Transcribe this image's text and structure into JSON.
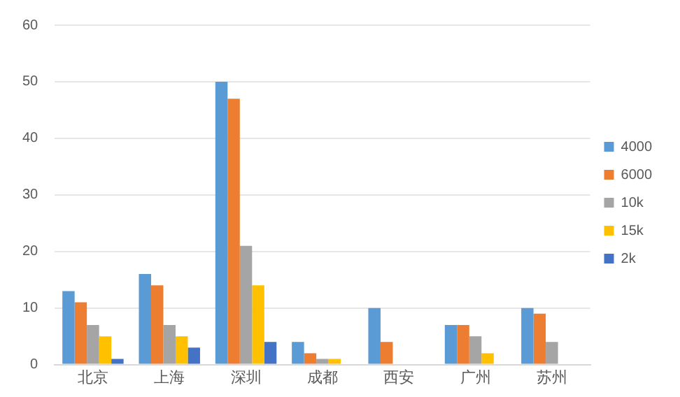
{
  "chart_data": {
    "type": "bar",
    "categories": [
      "北京",
      "上海",
      "深圳",
      "成都",
      "西安",
      "广州",
      "苏州"
    ],
    "series": [
      {
        "name": "4000",
        "color": "#5b9bd5",
        "values": [
          13,
          16,
          50,
          4,
          10,
          7,
          10
        ]
      },
      {
        "name": "6000",
        "color": "#ed7d31",
        "values": [
          11,
          14,
          47,
          2,
          4,
          7,
          9
        ]
      },
      {
        "name": "10k",
        "color": "#a5a5a5",
        "values": [
          7,
          7,
          21,
          1,
          0,
          5,
          4
        ]
      },
      {
        "name": "15k",
        "color": "#ffc000",
        "values": [
          5,
          5,
          14,
          1,
          0,
          2,
          null
        ]
      },
      {
        "name": "2k",
        "color": "#4472c4",
        "values": [
          1,
          3,
          4,
          0,
          0,
          null,
          null
        ]
      }
    ],
    "ylim": [
      0,
      60
    ],
    "yticks": [
      0,
      10,
      20,
      30,
      40,
      50,
      60
    ],
    "grid": "y",
    "legend": "right"
  }
}
